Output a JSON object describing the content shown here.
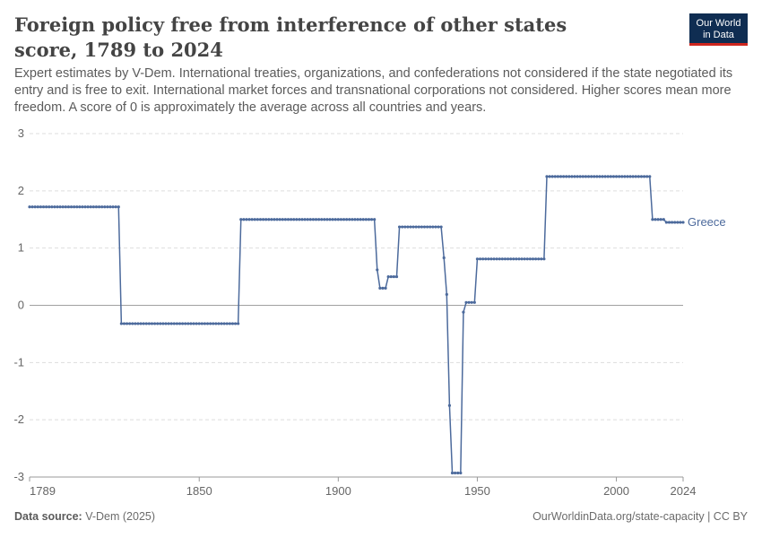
{
  "header": {
    "title": "Foreign policy free from interference of other states score, 1789 to 2024",
    "subtitle": "Expert estimates by V-Dem. International treaties, organizations, and confederations not considered if the state negotiated its entry and is free to exit. International market forces and transnational corporations not considered. Higher scores mean more freedom. A score of 0 is approximately the average across all countries and years.",
    "logo_line1": "Our World",
    "logo_line2": "in Data"
  },
  "footer": {
    "source_label": "Data source:",
    "source_value": "V-Dem (2025)",
    "url": "OurWorldinData.org/state-capacity | CC BY"
  },
  "colors": {
    "series": "#4c6a9c",
    "grid": "#dddddd",
    "zero_line": "#a1a1a1",
    "text": "#666666"
  },
  "chart_data": {
    "type": "line",
    "title": "Foreign policy free from interference of other states score, 1789 to 2024",
    "xlabel": "",
    "ylabel": "",
    "xlim": [
      1789,
      2024
    ],
    "ylim": [
      -3,
      3
    ],
    "x_ticks": [
      1789,
      1850,
      1900,
      1950,
      2000,
      2024
    ],
    "y_ticks": [
      -3,
      -2,
      -1,
      0,
      1,
      2,
      3
    ],
    "series": [
      {
        "name": "Greece",
        "segments": [
          {
            "from": 1789,
            "to": 1821,
            "value": 1.72
          },
          {
            "from": 1822,
            "to": 1864,
            "value": -0.32
          },
          {
            "from": 1865,
            "to": 1913,
            "value": 1.5
          },
          {
            "from": 1914,
            "to": 1914,
            "value": 0.62
          },
          {
            "from": 1915,
            "to": 1917,
            "value": 0.3
          },
          {
            "from": 1918,
            "to": 1921,
            "value": 0.5
          },
          {
            "from": 1922,
            "to": 1937,
            "value": 1.37
          },
          {
            "from": 1938,
            "to": 1938,
            "value": 0.83
          },
          {
            "from": 1939,
            "to": 1939,
            "value": 0.19
          },
          {
            "from": 1940,
            "to": 1940,
            "value": -1.75
          },
          {
            "from": 1941,
            "to": 1944,
            "value": -2.93
          },
          {
            "from": 1945,
            "to": 1945,
            "value": -0.12
          },
          {
            "from": 1946,
            "to": 1949,
            "value": 0.05
          },
          {
            "from": 1950,
            "to": 1974,
            "value": 0.81
          },
          {
            "from": 1975,
            "to": 2012,
            "value": 2.25
          },
          {
            "from": 2013,
            "to": 2017,
            "value": 1.5
          },
          {
            "from": 2018,
            "to": 2024,
            "value": 1.45
          }
        ]
      }
    ]
  }
}
